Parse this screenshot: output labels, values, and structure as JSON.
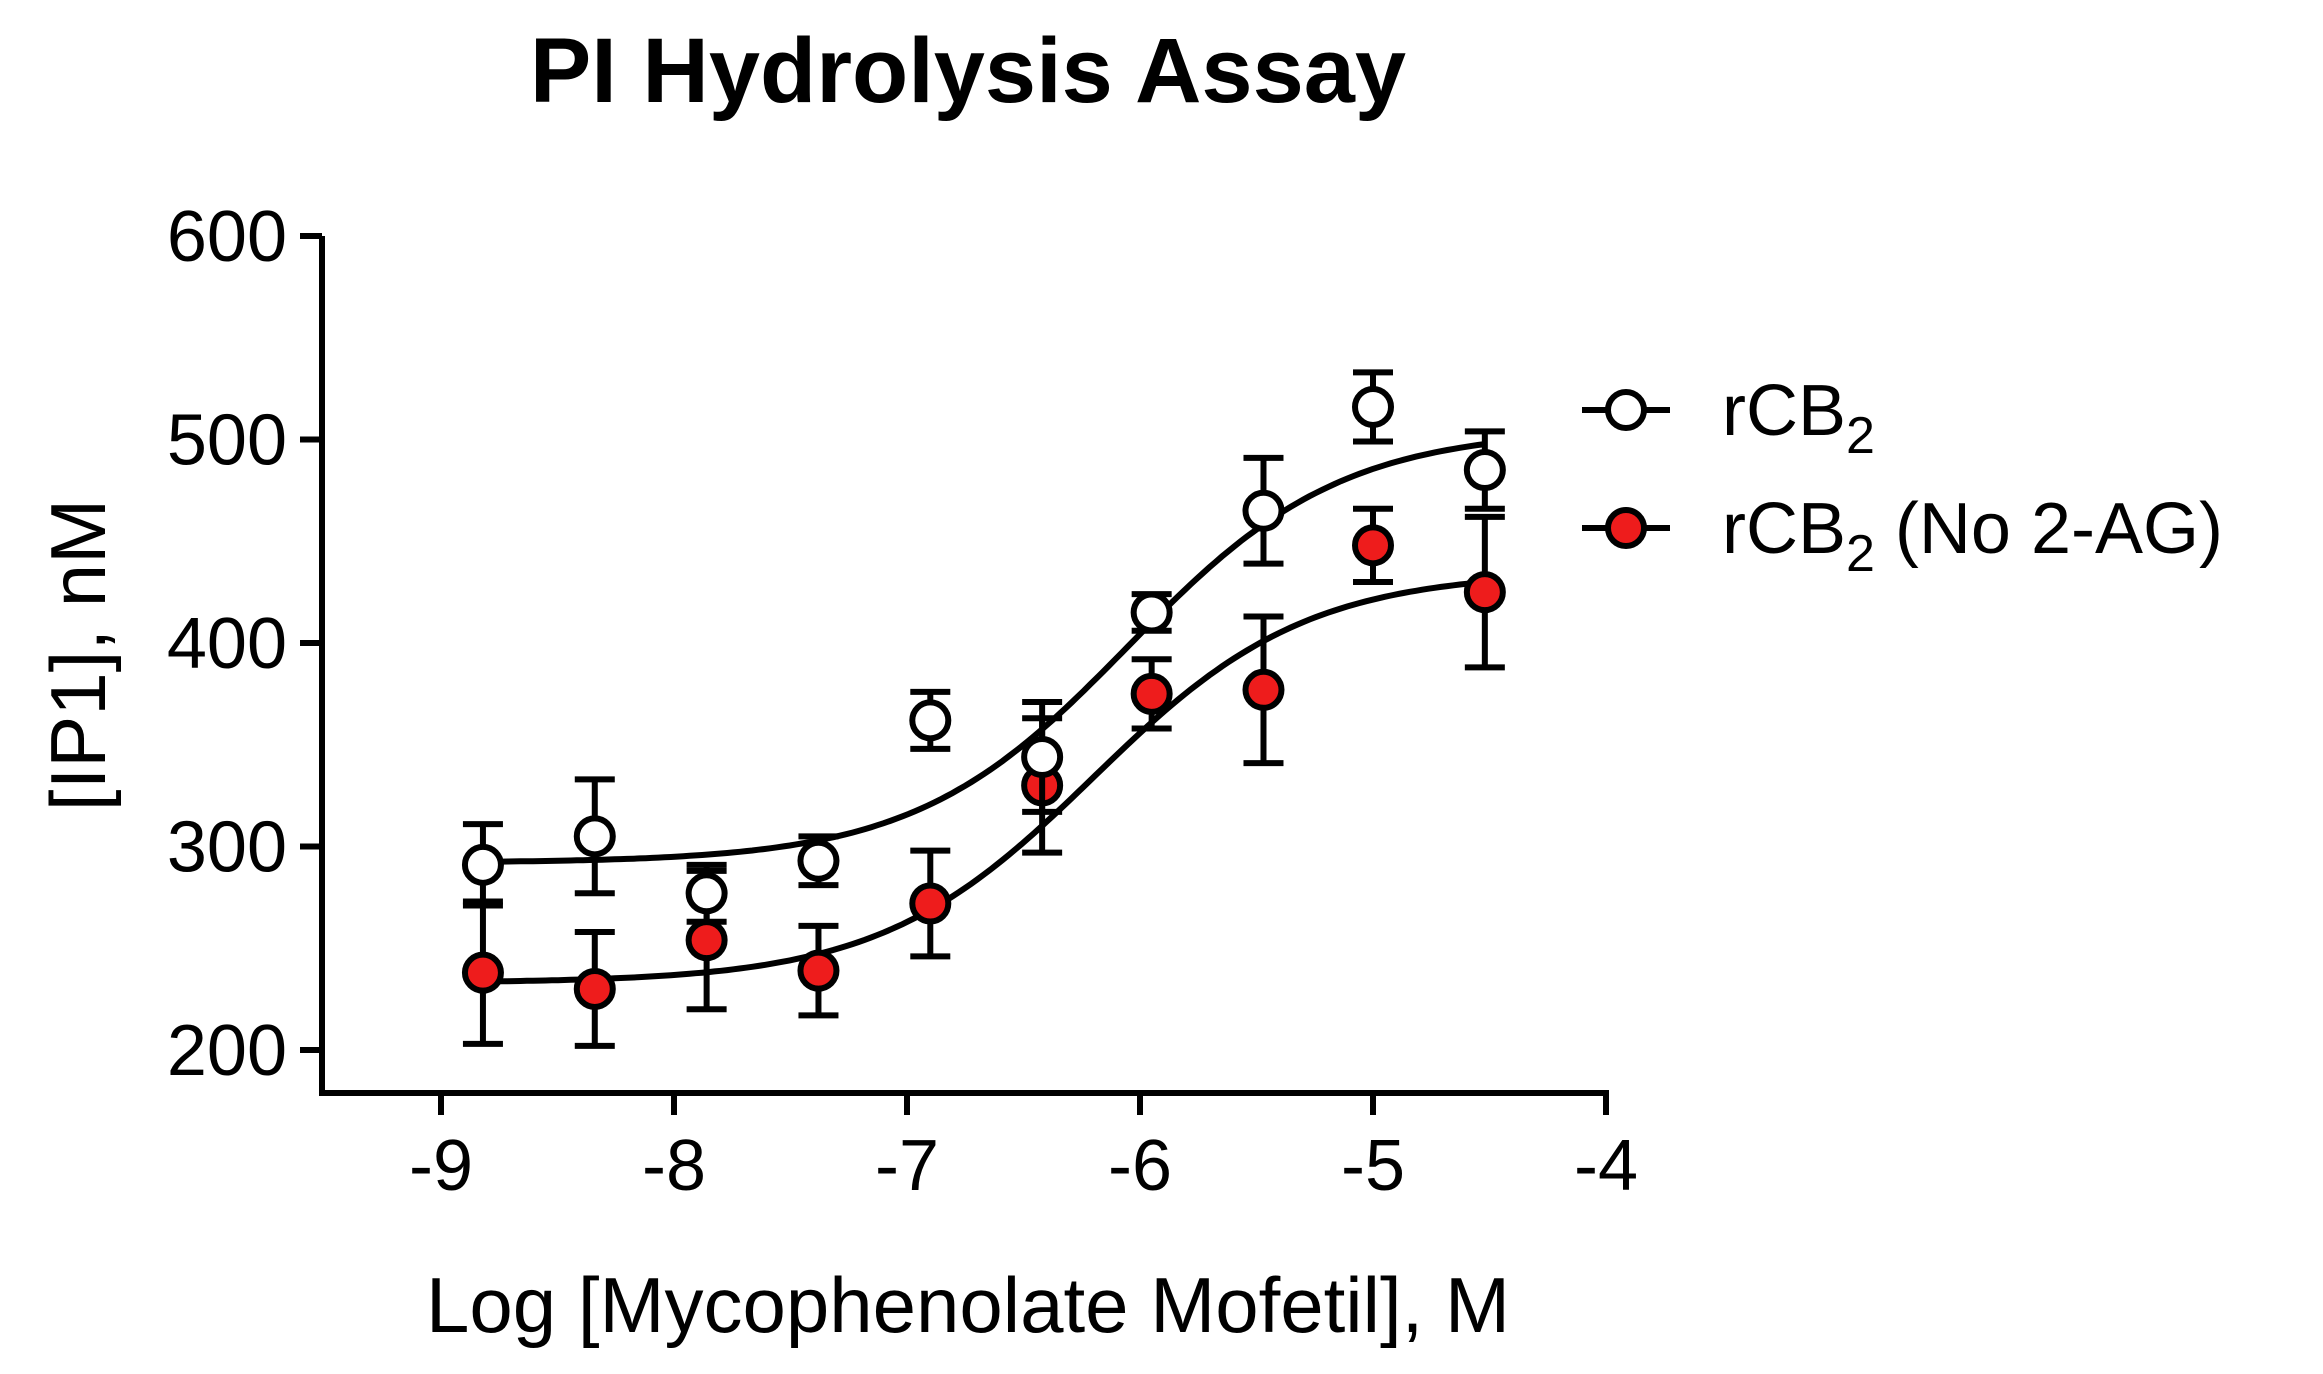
{
  "chart_data": {
    "type": "scatter",
    "title": "PI Hydrolysis Assay",
    "xlabel": "Log [Mycophenolate Mofetil], M",
    "ylabel": "[IP1], nM",
    "xlim": [
      -9.5,
      -4
    ],
    "ylim": [
      185,
      600
    ],
    "x_ticks": [
      -9,
      -8,
      -7,
      -6,
      -5,
      -4
    ],
    "y_ticks": [
      200,
      300,
      400,
      500,
      600
    ],
    "legend_position": "right",
    "series": [
      {
        "name": "rCB",
        "name_sub": "2",
        "name_suffix": "",
        "marker": "open-circle",
        "color": "#ffffff",
        "x": [
          -8.82,
          -8.34,
          -7.86,
          -7.38,
          -6.9,
          -6.42,
          -5.95,
          -5.47,
          -5.0,
          -4.52
        ],
        "y": [
          291,
          305,
          277,
          293,
          362,
          344,
          415,
          465,
          516,
          485
        ],
        "error": [
          20,
          28,
          14,
          12,
          14,
          27,
          9,
          26,
          17,
          19
        ],
        "fit": {
          "bottom": 292,
          "top": 505,
          "logEC50": -6.05,
          "hill": 0.95
        }
      },
      {
        "name": "rCB",
        "name_sub": "2",
        "name_suffix": " (No 2-AG)",
        "marker": "filled-circle",
        "color": "#ee1c1c",
        "x": [
          -8.82,
          -8.34,
          -7.86,
          -7.38,
          -6.9,
          -6.42,
          -5.95,
          -5.47,
          -5.0,
          -4.52
        ],
        "y": [
          238,
          230,
          254,
          239,
          272,
          330,
          375,
          377,
          448,
          425
        ],
        "error": [
          35,
          28,
          34,
          22,
          26,
          33,
          17,
          36,
          18,
          37
        ],
        "fit": {
          "bottom": 233,
          "top": 435,
          "logEC50": -6.2,
          "hill": 0.95
        }
      }
    ]
  }
}
